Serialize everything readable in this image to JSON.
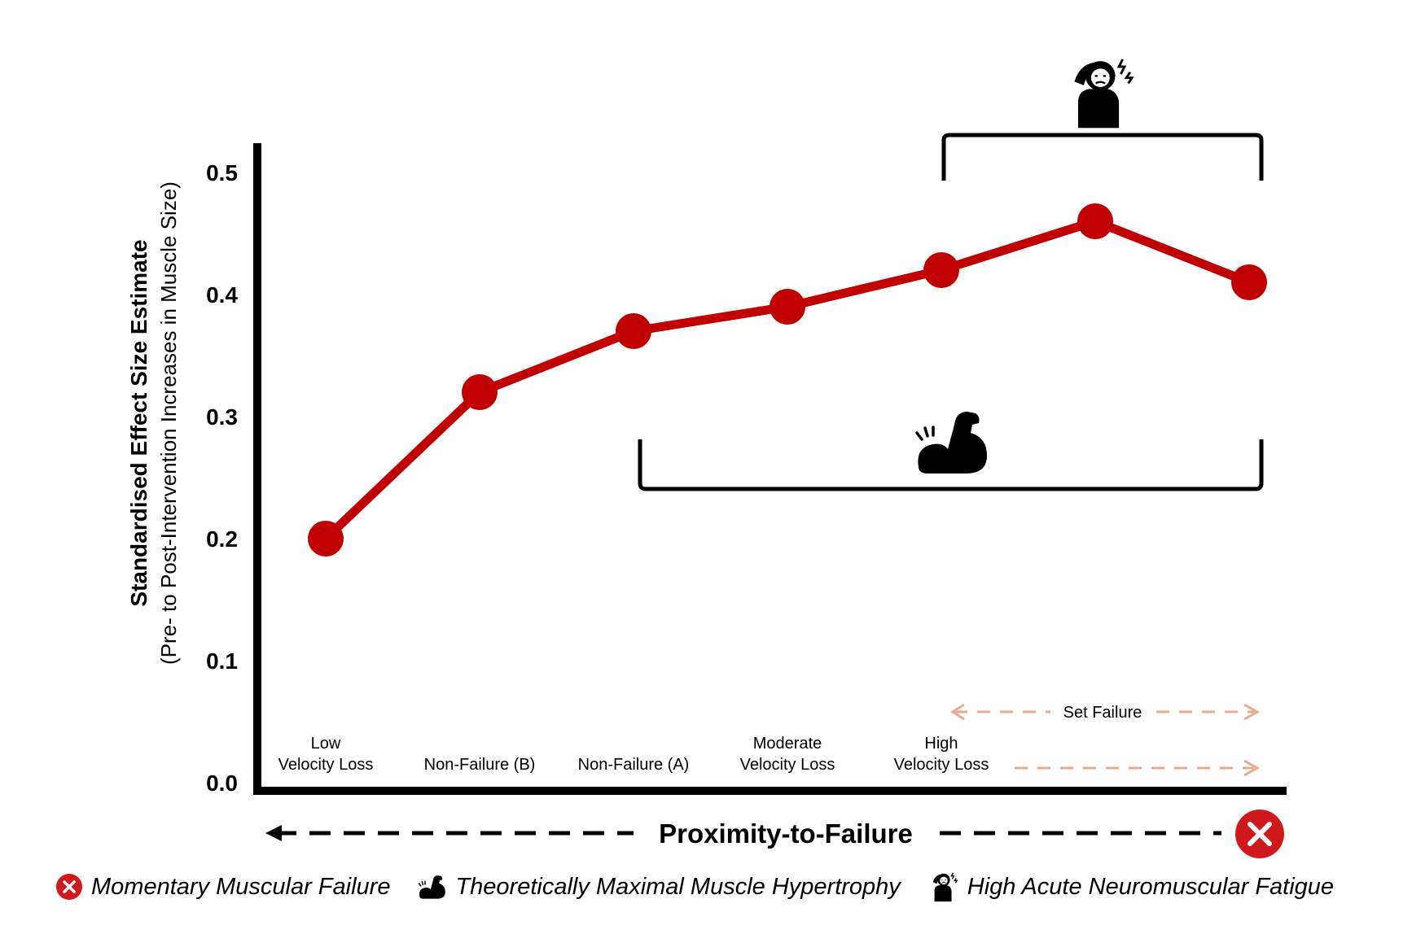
{
  "chart_data": {
    "type": "line",
    "ylabel": "Standardised Effect Size Estimate",
    "ylabel_sub": "(Pre- to Post-Intervention Increases in Muscle Size)",
    "xlabel": "Proximity-to-Failure",
    "yticks": [
      "0.0",
      "0.1",
      "0.2",
      "0.3",
      "0.4",
      "0.5"
    ],
    "ylim": [
      0,
      0.5
    ],
    "categories": [
      [
        "Low",
        "Velocity Loss"
      ],
      [
        "",
        "Non-Failure (B)"
      ],
      [
        "",
        "Non-Failure (A)"
      ],
      [
        "Moderate",
        "Velocity Loss"
      ],
      [
        "High",
        "Velocity Loss"
      ],
      [
        "",
        ""
      ],
      [
        "",
        ""
      ]
    ],
    "series": [
      {
        "values": [
          0.2,
          0.32,
          0.37,
          0.39,
          0.42,
          0.46,
          0.41
        ],
        "color": "#c00000"
      }
    ],
    "annotations": {
      "set_failure": "Set Failure",
      "hypertrophy_bracket": "theoretically-maximal-hypertrophy range: points 3–7",
      "fatigue_bracket": "high-fatigue range: points 5–7"
    },
    "grid": false
  },
  "legend": {
    "items": [
      {
        "icon": "failure-x-icon",
        "label": "Momentary Muscular Failure"
      },
      {
        "icon": "flexed-bicep-icon",
        "label": "Theoretically Maximal Muscle Hypertrophy"
      },
      {
        "icon": "fatigued-person-icon",
        "label": "High Acute Neuromuscular Fatigue"
      }
    ]
  },
  "colors": {
    "line": "#c00000",
    "failure": "#d0191c",
    "set_failure_arrow": "#e8a98f",
    "axis": "#000000"
  }
}
